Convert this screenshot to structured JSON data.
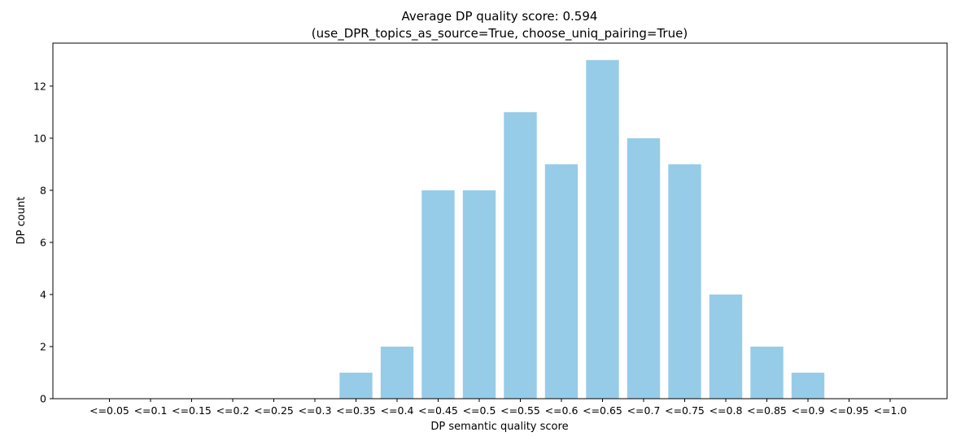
{
  "chart_data": {
    "type": "bar",
    "title_line1": "Average DP quality score: 0.594",
    "title_line2": "(use_DPR_topics_as_source=True, choose_uniq_pairing=True)",
    "xlabel": "DP semantic quality score",
    "ylabel": "DP count",
    "categories": [
      "<=0.05",
      "<=0.1",
      "<=0.15",
      "<=0.2",
      "<=0.25",
      "<=0.3",
      "<=0.35",
      "<=0.4",
      "<=0.45",
      "<=0.5",
      "<=0.55",
      "<=0.6",
      "<=0.65",
      "<=0.7",
      "<=0.75",
      "<=0.8",
      "<=0.85",
      "<=0.9",
      "<=0.95",
      "<=1.0"
    ],
    "values": [
      0,
      0,
      0,
      0,
      0,
      0,
      1,
      2,
      8,
      8,
      11,
      9,
      13,
      10,
      9,
      4,
      2,
      1,
      0,
      0
    ],
    "yticks": [
      0,
      2,
      4,
      6,
      8,
      10,
      12
    ],
    "ylim": [
      0,
      13.65
    ],
    "grid": false,
    "bar_color": "#97cce8"
  }
}
